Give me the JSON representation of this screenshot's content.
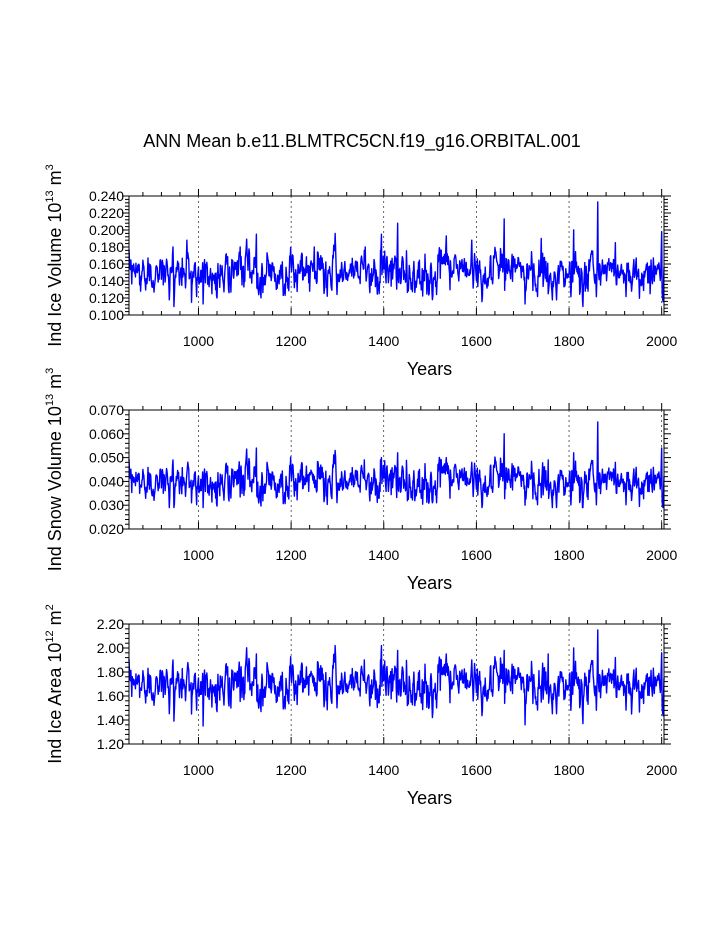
{
  "figure_title": "ANN Mean b.e11.BLMTRC5CN.f19_g16.ORBITAL.001",
  "line_color": "#0000ff",
  "chart_data": [
    {
      "type": "line",
      "title": "",
      "xlabel": "Years",
      "ylabel_main": "Ind Ice Volume 10",
      "ylabel_exp": "13",
      "ylabel_unit": " m",
      "ylabel_unit_exp": "3",
      "xlim": [
        850,
        2005
      ],
      "ylim": [
        0.1,
        0.24
      ],
      "xticks": [
        1000,
        1200,
        1400,
        1600,
        1800,
        2000
      ],
      "xtick_labels": [
        "1000",
        "1200",
        "1400",
        "1600",
        "1800",
        "2000"
      ],
      "yticks": [
        0.1,
        0.12,
        0.14,
        0.16,
        0.18,
        0.2,
        0.22,
        0.24
      ],
      "ytick_labels": [
        "0.100",
        "0.120",
        "0.140",
        "0.160",
        "0.180",
        "0.200",
        "0.220",
        "0.240"
      ],
      "grid": "vertical dashed at major x ticks",
      "series_summary": {
        "mean": 0.15,
        "std": 0.013,
        "min": 0.11,
        "max": 0.233
      },
      "peaks": [
        [
          860,
          0.16
        ],
        [
          945,
          0.18
        ],
        [
          975,
          0.188
        ],
        [
          1090,
          0.18
        ],
        [
          1125,
          0.195
        ],
        [
          1250,
          0.18
        ],
        [
          1295,
          0.196
        ],
        [
          1360,
          0.18
        ],
        [
          1395,
          0.195
        ],
        [
          1430,
          0.208
        ],
        [
          1535,
          0.193
        ],
        [
          1590,
          0.188
        ],
        [
          1660,
          0.213
        ],
        [
          1740,
          0.19
        ],
        [
          1755,
          0.196
        ],
        [
          1810,
          0.2
        ],
        [
          1862,
          0.233
        ],
        [
          1900,
          0.185
        ],
        [
          2000,
          0.198
        ]
      ],
      "troughs": [
        [
          875,
          0.128
        ],
        [
          985,
          0.115
        ],
        [
          1010,
          0.113
        ],
        [
          1070,
          0.127
        ],
        [
          1240,
          0.128
        ],
        [
          1390,
          0.125
        ],
        [
          1505,
          0.118
        ],
        [
          1705,
          0.113
        ],
        [
          1755,
          0.125
        ],
        [
          1835,
          0.128
        ],
        [
          1935,
          0.128
        ],
        [
          1975,
          0.125
        ]
      ],
      "start_year": 850,
      "end_year": 2005
    },
    {
      "type": "line",
      "title": "",
      "xlabel": "Years",
      "ylabel_main": "Ind Snow Volume 10",
      "ylabel_exp": "13",
      "ylabel_unit": " m",
      "ylabel_unit_exp": "3",
      "xlim": [
        850,
        2005
      ],
      "ylim": [
        0.02,
        0.07
      ],
      "xticks": [
        1000,
        1200,
        1400,
        1600,
        1800,
        2000
      ],
      "xtick_labels": [
        "1000",
        "1200",
        "1400",
        "1600",
        "1800",
        "2000"
      ],
      "yticks": [
        0.02,
        0.03,
        0.04,
        0.05,
        0.06,
        0.07
      ],
      "ytick_labels": [
        "0.020",
        "0.030",
        "0.040",
        "0.050",
        "0.060",
        "0.070"
      ],
      "grid": "vertical dashed at major x ticks",
      "series_summary": {
        "mean": 0.04,
        "std": 0.0045,
        "min": 0.029,
        "max": 0.065
      },
      "peaks": [
        [
          945,
          0.049
        ],
        [
          1125,
          0.054
        ],
        [
          1295,
          0.053
        ],
        [
          1395,
          0.05
        ],
        [
          1430,
          0.052
        ],
        [
          1535,
          0.05
        ],
        [
          1590,
          0.048
        ],
        [
          1660,
          0.06
        ],
        [
          1755,
          0.049
        ],
        [
          1810,
          0.052
        ],
        [
          1862,
          0.065
        ],
        [
          1900,
          0.048
        ],
        [
          2000,
          0.054
        ]
      ],
      "troughs": [
        [
          985,
          0.031
        ],
        [
          1010,
          0.029
        ],
        [
          1070,
          0.033
        ],
        [
          1505,
          0.031
        ],
        [
          1705,
          0.03
        ],
        [
          1935,
          0.032
        ]
      ],
      "start_year": 850,
      "end_year": 2005
    },
    {
      "type": "line",
      "title": "",
      "xlabel": "Years",
      "ylabel_main": "Ind Ice Area 10",
      "ylabel_exp": "12",
      "ylabel_unit": " m",
      "ylabel_unit_exp": "2",
      "xlim": [
        850,
        2005
      ],
      "ylim": [
        1.2,
        2.2
      ],
      "xticks": [
        1000,
        1200,
        1400,
        1600,
        1800,
        2000
      ],
      "xtick_labels": [
        "1000",
        "1200",
        "1400",
        "1600",
        "1800",
        "2000"
      ],
      "yticks": [
        1.2,
        1.4,
        1.6,
        1.8,
        2.0,
        2.2
      ],
      "ytick_labels": [
        "1.20",
        "1.40",
        "1.60",
        "1.80",
        "2.00",
        "2.20"
      ],
      "grid": "vertical dashed at major x ticks",
      "series_summary": {
        "mean": 1.7,
        "std": 0.1,
        "min": 1.35,
        "max": 2.15
      },
      "peaks": [
        [
          945,
          1.9
        ],
        [
          1125,
          1.95
        ],
        [
          1295,
          2.02
        ],
        [
          1395,
          2.02
        ],
        [
          1430,
          1.98
        ],
        [
          1535,
          1.95
        ],
        [
          1590,
          1.9
        ],
        [
          1660,
          1.98
        ],
        [
          1755,
          1.95
        ],
        [
          1810,
          2.0
        ],
        [
          1862,
          2.15
        ],
        [
          1900,
          1.92
        ],
        [
          2000,
          1.96
        ]
      ],
      "troughs": [
        [
          985,
          1.45
        ],
        [
          1010,
          1.35
        ],
        [
          1070,
          1.5
        ],
        [
          1505,
          1.42
        ],
        [
          1705,
          1.36
        ],
        [
          1935,
          1.45
        ]
      ],
      "start_year": 850,
      "end_year": 2005
    }
  ]
}
